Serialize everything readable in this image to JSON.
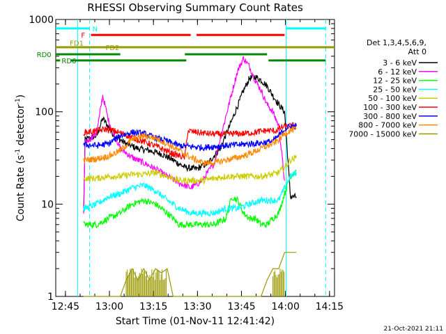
{
  "chart_data": {
    "type": "line",
    "title": "RHESSI Observing Summary Count Rates",
    "xlabel": "Start Time (01-Nov-11 12:41:42)",
    "ylabel_main": "Count Rate (s",
    "ylabel_sup": "-1",
    "ylabel_tail": " detector",
    "ylabel_sup2": "-1",
    "ylabel_end": ")",
    "x_unit": "minutes after 12:41:42 (time of day)",
    "xlim": [
      0,
      95
    ],
    "ylim": [
      1,
      1000
    ],
    "y_scale": "log",
    "x_ticks": [
      {
        "label": "12:45",
        "value": 3.3
      },
      {
        "label": "13:00",
        "value": 18.3
      },
      {
        "label": "13:15",
        "value": 33.3
      },
      {
        "label": "13:30",
        "value": 48.3
      },
      {
        "label": "13:45",
        "value": 63.3
      },
      {
        "label": "14:00",
        "value": 78.3
      },
      {
        "label": "14:15",
        "value": 93.3
      }
    ],
    "y_ticks": [
      {
        "label": "1",
        "value": 1
      },
      {
        "label": "10",
        "value": 10
      },
      {
        "label": "100",
        "value": 100
      },
      {
        "label": "1000",
        "value": 1000
      }
    ],
    "legend_header": [
      "Det 1,3,4,5,6,9,",
      "Att 0"
    ],
    "legend_placement": "right",
    "series": [
      {
        "name": "3 - 6 keV",
        "color": "#000000",
        "x": [
          9.5,
          10,
          14,
          16,
          20,
          24,
          28,
          32,
          36,
          40,
          44,
          48,
          52,
          56,
          60,
          64,
          66,
          68,
          70,
          72,
          74,
          76,
          78,
          80,
          82
        ],
        "y": [
          8,
          50,
          55,
          85,
          55,
          45,
          40,
          38,
          35,
          30,
          25,
          24,
          28,
          40,
          80,
          170,
          230,
          240,
          220,
          190,
          150,
          120,
          100,
          12,
          12
        ]
      },
      {
        "name": "6 - 12 keV",
        "color": "#ff00ff",
        "x": [
          9.5,
          10,
          14,
          16,
          18,
          22,
          26,
          30,
          34,
          38,
          42,
          46,
          50,
          54,
          58,
          62,
          64,
          66,
          68,
          70,
          72,
          74,
          76,
          78
        ],
        "y": [
          8,
          45,
          60,
          150,
          80,
          40,
          32,
          28,
          24,
          20,
          17,
          15,
          18,
          28,
          90,
          280,
          380,
          310,
          220,
          170,
          120,
          100,
          70,
          18
        ]
      },
      {
        "name": "12 - 25 keV",
        "color": "#00ff00",
        "x": [
          9.5,
          10,
          14,
          18,
          22,
          26,
          30,
          34,
          38,
          40,
          42,
          46,
          50,
          54,
          58,
          60,
          62,
          64,
          66,
          68,
          70,
          72,
          74,
          76,
          78,
          80,
          82
        ],
        "y": [
          6,
          6,
          6,
          7,
          8,
          10,
          11,
          10,
          8,
          7,
          6,
          6,
          6,
          6,
          7,
          12,
          11,
          8,
          7,
          7,
          6,
          6,
          7,
          8,
          13,
          20,
          23
        ]
      },
      {
        "name": "25 - 50 keV",
        "color": "#00ffff",
        "x": [
          9.5,
          10,
          14,
          18,
          22,
          26,
          30,
          34,
          38,
          40,
          42,
          46,
          50,
          54,
          58,
          62,
          66,
          70,
          74,
          76,
          78,
          80,
          82
        ],
        "y": [
          9,
          9,
          10,
          12,
          13,
          15,
          16,
          14,
          11,
          10,
          9,
          8,
          8,
          8,
          9,
          9,
          10,
          11,
          11,
          11,
          15,
          20,
          22
        ]
      },
      {
        "name": "50 - 100 keV",
        "color": "#cccc00",
        "x": [
          9.5,
          10,
          14,
          18,
          22,
          26,
          30,
          34,
          38,
          42,
          46,
          50,
          54,
          58,
          62,
          66,
          70,
          74,
          76,
          78,
          80,
          82
        ],
        "y": [
          18,
          19,
          19,
          20,
          20,
          21,
          21,
          22,
          20,
          18,
          18,
          18,
          19,
          20,
          20,
          20,
          20,
          21,
          22,
          25,
          30,
          32
        ]
      },
      {
        "name": "100 - 300 keV",
        "color": "#ff0000",
        "x": [
          9.5,
          10,
          14,
          17,
          20,
          24,
          28,
          32,
          36,
          40,
          44,
          45,
          48,
          52,
          56,
          60,
          64,
          68,
          72,
          75,
          77,
          80,
          82
        ],
        "y": [
          60,
          60,
          62,
          65,
          62,
          56,
          50,
          45,
          40,
          35,
          32,
          62,
          60,
          58,
          57,
          58,
          58,
          60,
          63,
          62,
          68,
          70,
          72
        ]
      },
      {
        "name": "300 - 800 keV",
        "color": "#0000ff",
        "x": [
          9.5,
          10,
          14,
          18,
          22,
          26,
          30,
          34,
          38,
          42,
          46,
          50,
          54,
          58,
          62,
          66,
          70,
          74,
          76,
          78,
          80,
          82
        ],
        "y": [
          43,
          44,
          43,
          45,
          55,
          60,
          58,
          52,
          48,
          43,
          42,
          41,
          42,
          43,
          44,
          45,
          46,
          48,
          55,
          65,
          70,
          70
        ]
      },
      {
        "name": "800 - 7000 keV",
        "color": "#ff8800",
        "x": [
          9.5,
          10,
          14,
          18,
          22,
          26,
          30,
          34,
          38,
          42,
          46,
          50,
          54,
          58,
          62,
          66,
          70,
          74,
          76,
          78,
          80,
          82
        ],
        "y": [
          30,
          30,
          31,
          33,
          38,
          50,
          55,
          52,
          45,
          38,
          32,
          28,
          28,
          30,
          32,
          35,
          40,
          45,
          50,
          58,
          63,
          65
        ]
      },
      {
        "name": "7000 - 15000 keV",
        "color": "#999900",
        "x": [
          9.5,
          12,
          18,
          22,
          24,
          26,
          28,
          30,
          32,
          34,
          36,
          38,
          40,
          46,
          52,
          58,
          62,
          64,
          66,
          68,
          70,
          72,
          74,
          76,
          78,
          80,
          82
        ],
        "y": [
          1,
          1,
          1,
          1,
          1.5,
          2,
          1.5,
          2,
          1.5,
          2,
          1.8,
          2,
          1,
          1,
          1,
          1,
          1,
          1,
          1,
          1,
          1,
          1.5,
          2,
          2,
          3,
          3,
          3
        ]
      }
    ],
    "vertical_lines": [
      {
        "x": 7.5,
        "color": "#00ffff",
        "style": "solid"
      },
      {
        "x": 11.5,
        "color": "#00ffff",
        "style": "dashed"
      },
      {
        "x": 78.5,
        "color": "#00ffff",
        "style": "solid"
      },
      {
        "x": 92,
        "color": "#00ffff",
        "style": "dashed"
      }
    ],
    "flag_bars": [
      {
        "label": "N",
        "color": "#00ffff",
        "y": 800,
        "segments": [
          [
            0,
            11.5
          ],
          [
            78.5,
            92
          ]
        ]
      },
      {
        "label": "F",
        "color": "#ff0000",
        "y": 680,
        "segments": [
          [
            12,
            46
          ],
          [
            48,
            78
          ]
        ]
      },
      {
        "label": "FD1",
        "color": "#999900",
        "y": 560,
        "segments": []
      },
      {
        "label": "FD2",
        "color": "#999900",
        "y": 500,
        "segments": [
          [
            0,
            95
          ]
        ]
      },
      {
        "label": "RD0",
        "color": "#008800",
        "y": 420,
        "segments": [
          [
            0,
            22
          ],
          [
            44,
            72
          ]
        ]
      },
      {
        "label": "RD6",
        "color": "#008800",
        "y": 360,
        "segments": [
          [
            0,
            1.5
          ],
          [
            5,
            44.5
          ],
          [
            72.5,
            92
          ]
        ]
      }
    ]
  },
  "footer_timestamp": "21-Oct-2021 21:11"
}
